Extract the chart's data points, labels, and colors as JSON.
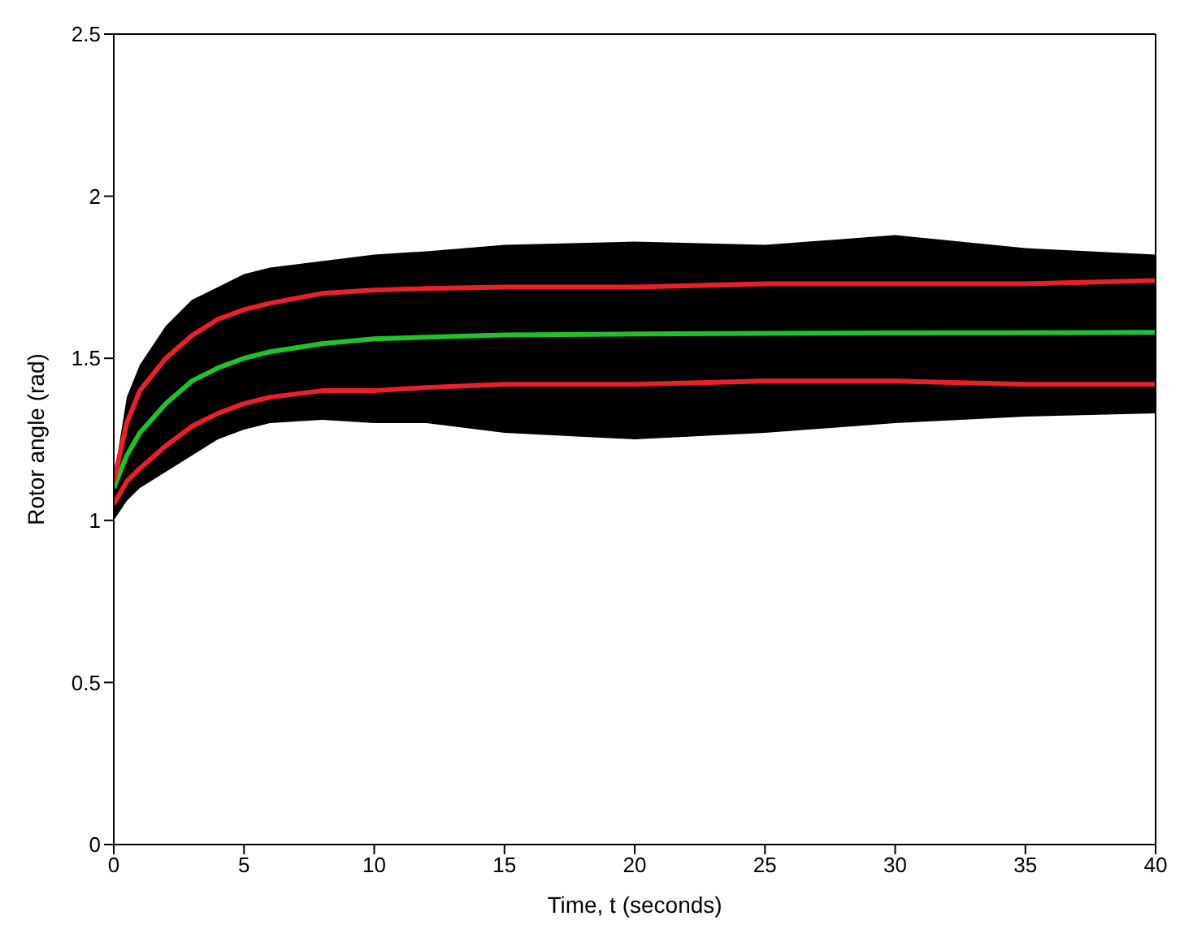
{
  "chart_data": {
    "type": "line",
    "xlabel": "Time, t (seconds)",
    "ylabel": "Rotor angle (rad)",
    "x": [
      0,
      0.5,
      1,
      2,
      3,
      4,
      5,
      6,
      8,
      10,
      12,
      15,
      20,
      25,
      30,
      35,
      40
    ],
    "series": [
      {
        "color": "#22c02c",
        "values": [
          1.1,
          1.2,
          1.27,
          1.36,
          1.43,
          1.47,
          1.5,
          1.52,
          1.545,
          1.56,
          1.565,
          1.572,
          1.575,
          1.577,
          1.578,
          1.579,
          1.58
        ],
        "lower": [
          1.0,
          1.06,
          1.1,
          1.15,
          1.2,
          1.25,
          1.28,
          1.3,
          1.31,
          1.3,
          1.3,
          1.27,
          1.25,
          1.27,
          1.3,
          1.32,
          1.33
        ],
        "upper": [
          1.13,
          1.38,
          1.48,
          1.6,
          1.68,
          1.72,
          1.76,
          1.78,
          1.8,
          1.82,
          1.83,
          1.85,
          1.86,
          1.85,
          1.88,
          1.84,
          1.82
        ]
      },
      {
        "color": "#e8202a",
        "values": [
          1.12,
          1.3,
          1.4,
          1.5,
          1.57,
          1.62,
          1.65,
          1.67,
          1.7,
          1.71,
          1.715,
          1.72,
          1.72,
          1.73,
          1.73,
          1.73,
          1.74
        ]
      },
      {
        "color": "#e8202a",
        "values": [
          1.05,
          1.12,
          1.16,
          1.23,
          1.29,
          1.33,
          1.36,
          1.38,
          1.4,
          1.4,
          1.41,
          1.42,
          1.42,
          1.43,
          1.43,
          1.42,
          1.42
        ]
      }
    ],
    "xlim": [
      0,
      40
    ],
    "xticks": [
      0,
      5,
      10,
      15,
      20,
      25,
      30,
      35,
      40
    ],
    "ylim": [
      0,
      2.5
    ],
    "yticks": [
      0,
      0.5,
      1,
      1.5,
      2,
      2.5
    ],
    "grid": false,
    "legend": false,
    "marker": "none",
    "line_style": "solid"
  }
}
